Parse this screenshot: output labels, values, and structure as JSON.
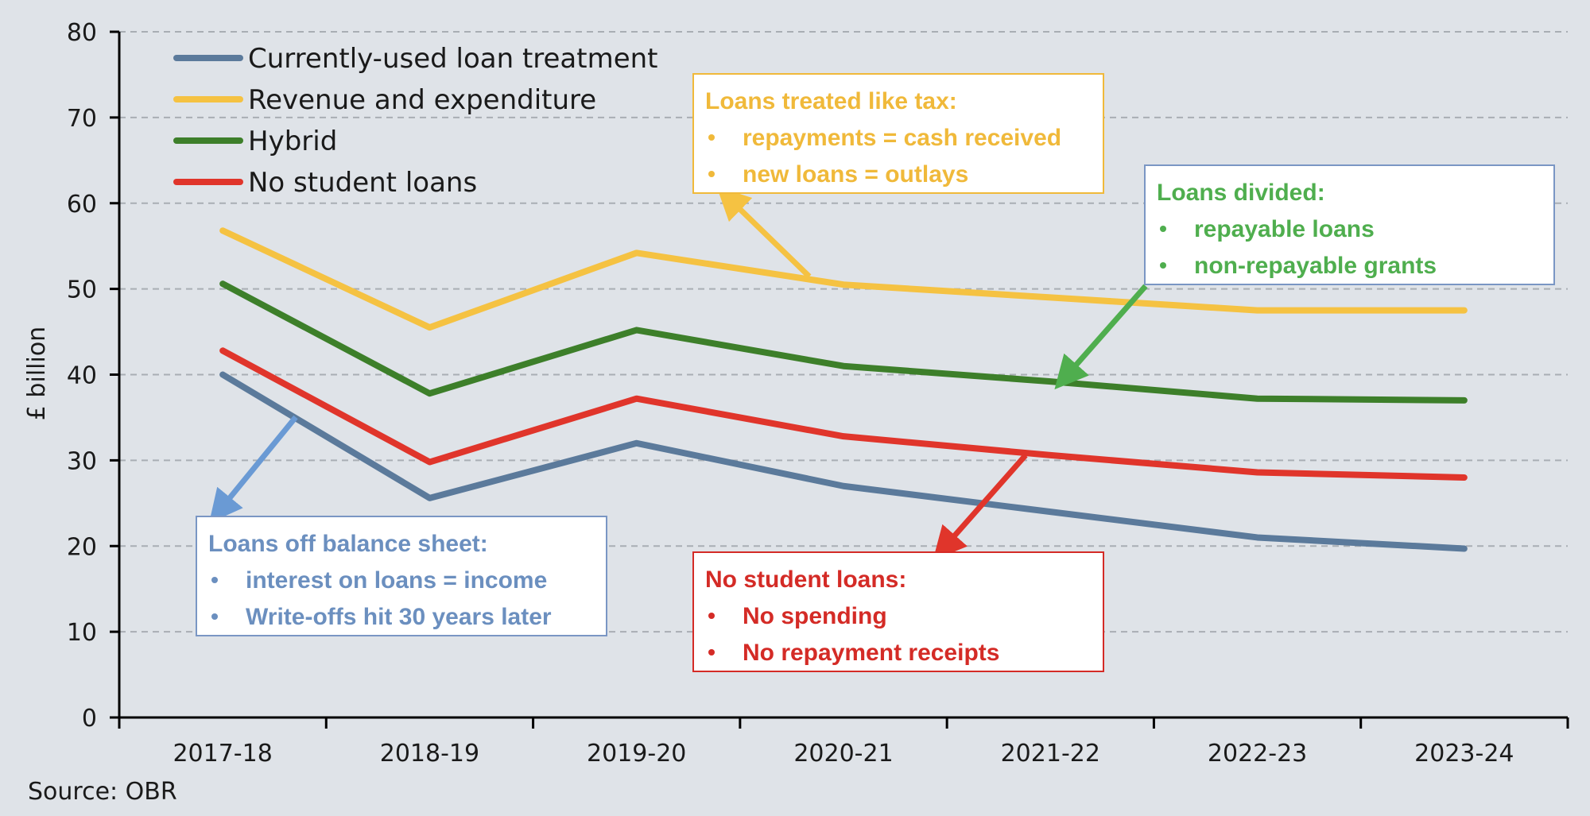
{
  "chart_data": {
    "type": "line",
    "title": "",
    "xlabel": "",
    "ylabel": "£ billion",
    "ylim": [
      0,
      80
    ],
    "yticks": [
      0,
      10,
      20,
      30,
      40,
      50,
      60,
      70,
      80
    ],
    "grid": "horizontal dashed",
    "legend_position": "top-left",
    "categories": [
      "2017-18",
      "2018-19",
      "2019-20",
      "2020-21",
      "2021-22",
      "2022-23",
      "2023-24"
    ],
    "series": [
      {
        "name": "Currently-used loan treatment",
        "color": "#5b7a9b",
        "values": [
          40.0,
          25.6,
          32.0,
          27.0,
          24.0,
          21.0,
          19.7
        ]
      },
      {
        "name": "Revenue and expenditure",
        "color": "#f5c242",
        "values": [
          56.8,
          45.5,
          54.2,
          50.5,
          49.0,
          47.5,
          47.5
        ]
      },
      {
        "name": "Hybrid",
        "color": "#3d7f2a",
        "values": [
          50.6,
          37.8,
          45.2,
          41.0,
          39.2,
          37.2,
          37.0
        ]
      },
      {
        "name": "No student loans",
        "color": "#e0352b",
        "values": [
          42.8,
          29.8,
          37.2,
          32.8,
          30.6,
          28.6,
          28.0
        ]
      }
    ],
    "annotations": [
      {
        "id": "tax",
        "title": "Loans treated like tax:",
        "bullets": [
          "repayments = cash received",
          "new loans = outlays"
        ],
        "color": "#f0b93a",
        "border": "#f0b93a",
        "arrow_color": "#f5c242"
      },
      {
        "id": "divided",
        "title": "Loans divided:",
        "bullets": [
          "repayable loans",
          "non-repayable grants"
        ],
        "color": "#4fae4e",
        "border": "#7a96c4",
        "arrow_color": "#4fae4e"
      },
      {
        "id": "offbalance",
        "title": "Loans off balance sheet:",
        "bullets": [
          "interest on loans = income",
          "Write-offs hit 30 years later"
        ],
        "color": "#6b8fbf",
        "border": "#7a96c4",
        "arrow_color": "#6a9ad4"
      },
      {
        "id": "nostudent",
        "title": "No student loans:",
        "bullets": [
          "No spending",
          "No repayment receipts"
        ],
        "color": "#d42b26",
        "border": "#d42b26",
        "arrow_color": "#e0352b"
      }
    ]
  },
  "source": "Source: OBR"
}
